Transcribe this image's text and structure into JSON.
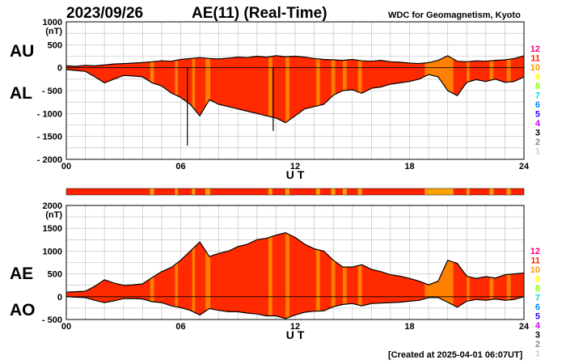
{
  "header": {
    "date": "2023/09/26",
    "title": "AE(11) (Real-Time)",
    "source": "WDC for Geomagnetism, Kyoto"
  },
  "footer": {
    "created": "[Created at 2025-04-01 06:07UT]"
  },
  "colors": {
    "fill_main": "#ff2a00",
    "fill_light": "#ff8800",
    "fill_dark": "#cc0000",
    "band_main": "#ff2200",
    "band_alt": "#ffa200",
    "grid": "#bbbbbb",
    "outline": "#000000"
  },
  "legend": {
    "numbers": [
      "12",
      "11",
      "10",
      "9",
      "8",
      "7",
      "6",
      "5",
      "4",
      "3",
      "2",
      "1"
    ],
    "colors": [
      "#ff0080",
      "#ff2200",
      "#ff9900",
      "#ffff00",
      "#88ff00",
      "#00dddd",
      "#0088ff",
      "#3300ff",
      "#cc00ff",
      "#000000",
      "#888888",
      "#cccccc"
    ]
  },
  "chart_data": [
    {
      "type": "area",
      "panel": "AU/AL",
      "labels": {
        "upper": "AU",
        "lower": "AL"
      },
      "ylabel_unit": "(nT)",
      "xlabel": "U T",
      "xlim": [
        0,
        24
      ],
      "ylim": [
        -2000,
        1000
      ],
      "x_ticks": [
        "00",
        "06",
        "12",
        "18",
        "24"
      ],
      "y_ticks": [
        "1000",
        "500",
        "0",
        "- 500",
        "- 1000",
        "- 1500",
        "- 2000"
      ],
      "y_tick_values": [
        1000,
        500,
        0,
        -500,
        -1000,
        -1500,
        -2000
      ],
      "grid": true,
      "x": [
        0,
        0.5,
        1,
        1.5,
        2,
        2.5,
        3,
        3.5,
        4,
        4.5,
        5,
        5.5,
        6,
        6.5,
        7,
        7.5,
        8,
        8.5,
        9,
        9.5,
        10,
        10.5,
        11,
        11.5,
        12,
        12.5,
        13,
        13.5,
        14,
        14.5,
        15,
        15.5,
        16,
        16.5,
        17,
        17.5,
        18,
        18.5,
        19,
        19.5,
        20,
        20.5,
        21,
        21.5,
        22,
        22.5,
        23,
        23.5,
        24
      ],
      "series": [
        {
          "name": "AU",
          "values": [
            40,
            30,
            50,
            40,
            60,
            80,
            90,
            100,
            110,
            130,
            150,
            140,
            180,
            200,
            220,
            200,
            190,
            210,
            230,
            220,
            250,
            230,
            260,
            240,
            250,
            230,
            200,
            180,
            170,
            160,
            180,
            150,
            140,
            160,
            130,
            120,
            100,
            90,
            110,
            160,
            260,
            140,
            130,
            150,
            140,
            160,
            170,
            200,
            260
          ]
        },
        {
          "name": "AL",
          "values": [
            -40,
            -60,
            -80,
            -200,
            -330,
            -250,
            -170,
            -180,
            -200,
            -330,
            -400,
            -550,
            -650,
            -800,
            -1050,
            -700,
            -800,
            -850,
            -900,
            -950,
            -1000,
            -1050,
            -1100,
            -1200,
            -1050,
            -900,
            -850,
            -800,
            -600,
            -500,
            -480,
            -560,
            -450,
            -420,
            -360,
            -330,
            -300,
            -250,
            -150,
            -200,
            -500,
            -610,
            -320,
            -260,
            -300,
            -250,
            -320,
            -300,
            -200
          ]
        }
      ],
      "annotations": [
        {
          "x": 6.35,
          "y": -1700
        },
        {
          "x": 10.85,
          "y": -1380
        }
      ]
    },
    {
      "type": "area",
      "panel": "AE/AO",
      "labels": {
        "upper": "AE",
        "lower": "AO"
      },
      "ylabel_unit": "(nT)",
      "xlabel": "U T",
      "xlim": [
        0,
        24
      ],
      "ylim": [
        -500,
        2000
      ],
      "x_ticks": [
        "00",
        "06",
        "12",
        "18",
        "24"
      ],
      "y_ticks": [
        "2000",
        "1500",
        "1000",
        "500",
        "0",
        "- 500"
      ],
      "y_tick_values": [
        2000,
        1500,
        1000,
        500,
        0,
        -500
      ],
      "grid": true,
      "x": [
        0,
        0.5,
        1,
        1.5,
        2,
        2.5,
        3,
        3.5,
        4,
        4.5,
        5,
        5.5,
        6,
        6.5,
        7,
        7.5,
        8,
        8.5,
        9,
        9.5,
        10,
        10.5,
        11,
        11.5,
        12,
        12.5,
        13,
        13.5,
        14,
        14.5,
        15,
        15.5,
        16,
        16.5,
        17,
        17.5,
        18,
        18.5,
        19,
        19.5,
        20,
        20.5,
        21,
        21.5,
        22,
        22.5,
        23,
        23.5,
        24
      ],
      "series": [
        {
          "name": "AE",
          "values": [
            100,
            110,
            120,
            230,
            370,
            300,
            250,
            260,
            280,
            420,
            550,
            640,
            800,
            1000,
            1200,
            880,
            950,
            1000,
            1100,
            1150,
            1250,
            1280,
            1350,
            1400,
            1300,
            1150,
            1050,
            1000,
            800,
            650,
            650,
            700,
            600,
            550,
            480,
            450,
            400,
            340,
            260,
            340,
            800,
            730,
            450,
            400,
            440,
            410,
            480,
            500,
            520
          ]
        },
        {
          "name": "AO",
          "values": [
            0,
            -10,
            -20,
            -80,
            -130,
            -90,
            -40,
            -40,
            -50,
            -110,
            -130,
            -200,
            -240,
            -300,
            -400,
            -260,
            -300,
            -330,
            -330,
            -360,
            -380,
            -420,
            -420,
            -480,
            -400,
            -340,
            -320,
            -310,
            -220,
            -170,
            -150,
            -200,
            -150,
            -140,
            -130,
            -120,
            -100,
            -80,
            -20,
            -20,
            -120,
            -230,
            -100,
            -60,
            -80,
            -50,
            -80,
            -60,
            0
          ]
        }
      ],
      "band": {
        "name": "station count",
        "segments": [
          {
            "from": 0,
            "to": 4.4,
            "level": "12"
          },
          {
            "from": 4.4,
            "to": 4.6,
            "level": "10"
          },
          {
            "from": 4.6,
            "to": 5.7,
            "level": "12"
          },
          {
            "from": 5.7,
            "to": 5.85,
            "level": "10"
          },
          {
            "from": 5.85,
            "to": 6.6,
            "level": "12"
          },
          {
            "from": 6.6,
            "to": 6.75,
            "level": "10"
          },
          {
            "from": 6.75,
            "to": 7.3,
            "level": "12"
          },
          {
            "from": 7.3,
            "to": 7.55,
            "level": "10"
          },
          {
            "from": 7.55,
            "to": 10.6,
            "level": "12"
          },
          {
            "from": 10.6,
            "to": 10.8,
            "level": "10"
          },
          {
            "from": 10.8,
            "to": 11.5,
            "level": "12"
          },
          {
            "from": 11.5,
            "to": 11.7,
            "level": "10"
          },
          {
            "from": 11.7,
            "to": 13.1,
            "level": "12"
          },
          {
            "from": 13.1,
            "to": 13.3,
            "level": "10"
          },
          {
            "from": 13.3,
            "to": 13.9,
            "level": "12"
          },
          {
            "from": 13.9,
            "to": 14.1,
            "level": "10"
          },
          {
            "from": 14.1,
            "to": 14.5,
            "level": "12"
          },
          {
            "from": 14.5,
            "to": 14.7,
            "level": "10"
          },
          {
            "from": 14.7,
            "to": 15.3,
            "level": "12"
          },
          {
            "from": 15.3,
            "to": 15.5,
            "level": "10"
          },
          {
            "from": 15.5,
            "to": 18.8,
            "level": "12"
          },
          {
            "from": 18.8,
            "to": 20.3,
            "level": "10"
          },
          {
            "from": 20.3,
            "to": 21.0,
            "level": "12"
          },
          {
            "from": 21.0,
            "to": 21.15,
            "level": "10"
          },
          {
            "from": 21.15,
            "to": 22.2,
            "level": "12"
          },
          {
            "from": 22.2,
            "to": 22.4,
            "level": "10"
          },
          {
            "from": 22.4,
            "to": 23.1,
            "level": "12"
          },
          {
            "from": 23.1,
            "to": 23.3,
            "level": "10"
          },
          {
            "from": 23.3,
            "to": 24,
            "level": "12"
          }
        ]
      }
    }
  ]
}
